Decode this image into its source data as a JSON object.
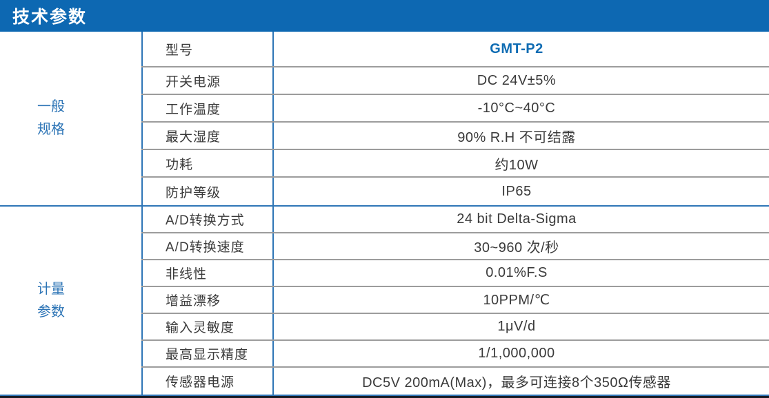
{
  "header": {
    "title": "技术参数"
  },
  "table": {
    "sections": [
      {
        "name": "general-specs",
        "category": [
          "一般",
          "规格"
        ],
        "rows": [
          {
            "label": "型号",
            "value": "GMT-P2",
            "accent": true
          },
          {
            "label": "开关电源",
            "value": "DC 24V±5%"
          },
          {
            "label": "工作温度",
            "value": "-10°C~40°C"
          },
          {
            "label": "最大湿度",
            "value": "90% R.H 不可结露"
          },
          {
            "label": "功耗",
            "value": "约10W"
          },
          {
            "label": "防护等级",
            "value": "IP65"
          }
        ]
      },
      {
        "name": "measurement-params",
        "category": [
          "计量",
          "参数"
        ],
        "rows": [
          {
            "label": "A/D转换方式",
            "value": "24 bit Delta-Sigma"
          },
          {
            "label": "A/D转换速度",
            "value": "30~960 次/秒"
          },
          {
            "label": "非线性",
            "value": "0.01%F.S"
          },
          {
            "label": "增益漂移",
            "value": "10PPM/℃"
          },
          {
            "label": "输入灵敏度",
            "value": "1μV/d"
          },
          {
            "label": "最高显示精度",
            "value": "1/1,000,000"
          },
          {
            "label": "传感器电源",
            "value": "DC5V 200mA(Max)，最多可连接8个350Ω传感器"
          }
        ]
      }
    ]
  },
  "colors": {
    "header_bg": "#0d68b2",
    "accent_line": "#2e75b6",
    "category_text": "#2e75b6",
    "model_value": "#0f6cb3",
    "row_line": "#9c9c9c",
    "body_text": "#3a3a3a"
  }
}
